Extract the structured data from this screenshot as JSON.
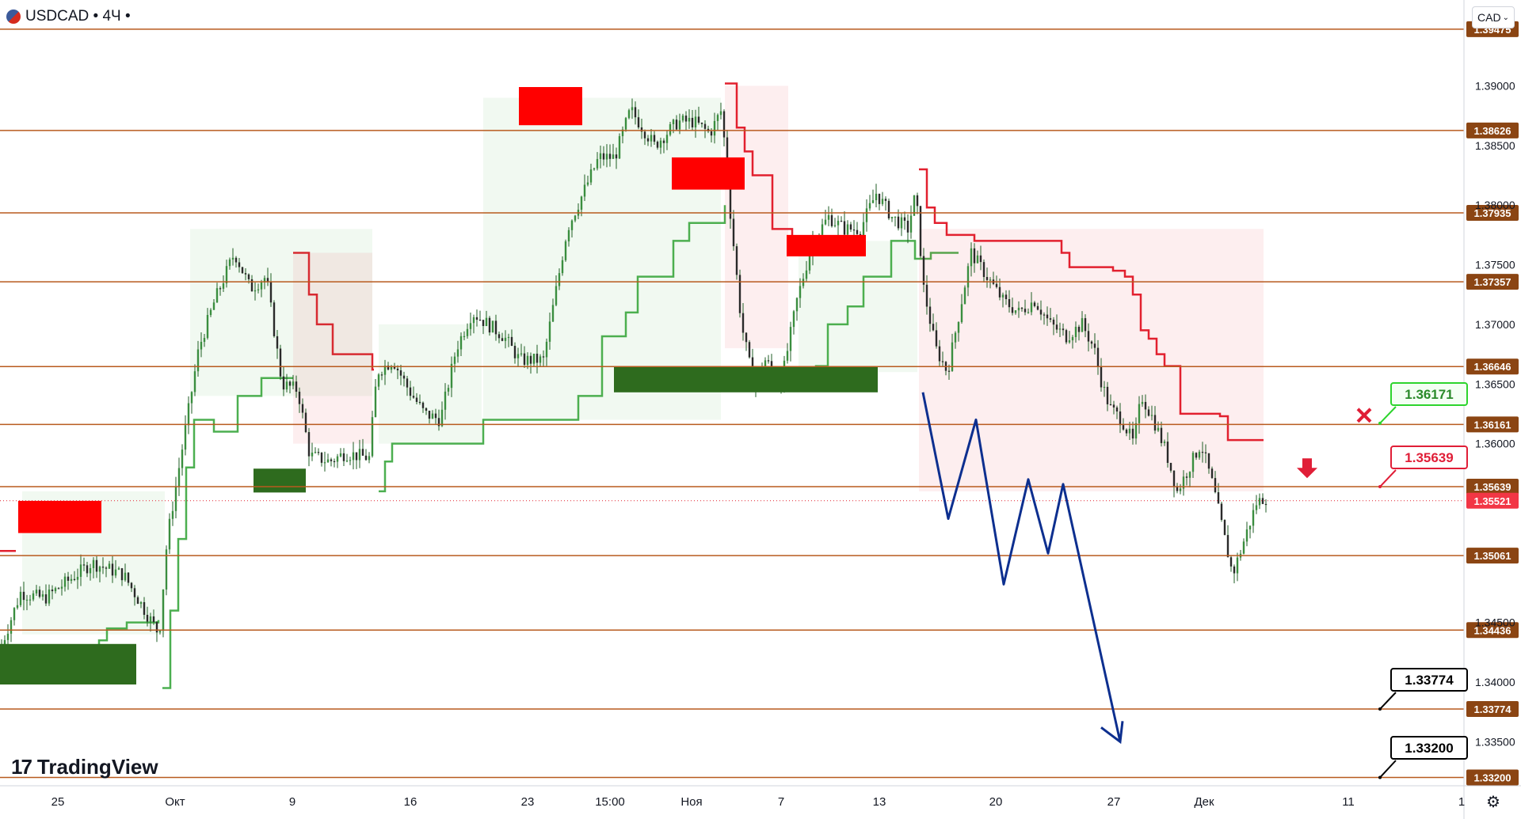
{
  "header": {
    "symbol": "USDCAD",
    "interval": "4Ч",
    "dot": "•"
  },
  "currency_button": {
    "label": "CAD",
    "icon": "chevron-down-icon"
  },
  "logo": {
    "text": "TradingView"
  },
  "colors": {
    "level": "#b85a1e",
    "resistance": "#ff0000",
    "support": "#2e6b1e",
    "projection": "#0d2f8f",
    "target": "#000000",
    "entry": "#e01e37",
    "stop": "#2dd42d",
    "candle": "#2e7d32",
    "redline": "#e2202f",
    "greenline": "#4caf50"
  },
  "chart_data": {
    "type": "candlestick",
    "price_axis": {
      "min": 1.327,
      "max": 1.3955,
      "ticks": [
        "1.39000",
        "1.38500",
        "1.38000",
        "1.37500",
        "1.37000",
        "1.36500",
        "1.36000",
        "1.34500",
        "1.34000",
        "1.33500"
      ]
    },
    "time_axis": {
      "labels": [
        "25",
        "Окт",
        "9",
        "16",
        "23",
        "15:00",
        "Ноя",
        "7",
        "13",
        "20",
        "27",
        "Дек",
        "11",
        "1"
      ]
    },
    "levels": [
      {
        "label": "1.39475",
        "price": 1.39475
      },
      {
        "label": "1.38626",
        "price": 1.38626
      },
      {
        "label": "1.37935",
        "price": 1.37935
      },
      {
        "label": "1.37357",
        "price": 1.37357
      },
      {
        "label": "1.36646",
        "price": 1.36646
      },
      {
        "label": "1.36161",
        "price": 1.36161
      },
      {
        "label": "1.35639",
        "price": 1.35639
      },
      {
        "label": "1.35061",
        "price": 1.35061
      },
      {
        "label": "1.34436",
        "price": 1.34436
      },
      {
        "label": "1.33774",
        "price": 1.33774
      },
      {
        "label": "1.33200",
        "price": 1.332
      }
    ],
    "current_price": {
      "label": "1.35521",
      "price": 1.35521
    },
    "callouts": {
      "stop": {
        "label": "1.36171",
        "price": 1.36171
      },
      "entry": {
        "label": "1.35639",
        "price": 1.35639
      },
      "target1": {
        "label": "1.33774",
        "price": 1.33774
      },
      "target2": {
        "label": "1.33200",
        "price": 1.332
      }
    },
    "zones": [
      {
        "type": "resistance",
        "from": 1.3525,
        "to": 1.3552,
        "x": [
          23,
          128
        ]
      },
      {
        "type": "support",
        "from": 1.3398,
        "to": 1.3432,
        "x": [
          0,
          172
        ]
      },
      {
        "type": "support",
        "from": 1.3559,
        "to": 1.3579,
        "x": [
          320,
          386
        ]
      },
      {
        "type": "resistance",
        "from": 1.3867,
        "to": 1.3899,
        "x": [
          655,
          735
        ]
      },
      {
        "type": "resistance",
        "from": 1.3813,
        "to": 1.384,
        "x": [
          848,
          940
        ]
      },
      {
        "type": "resistance",
        "from": 1.3757,
        "to": 1.3775,
        "x": [
          993,
          1093
        ]
      },
      {
        "type": "support",
        "from": 1.3643,
        "to": 1.3665,
        "x": [
          775,
          1108
        ]
      }
    ],
    "projection": [
      [
        1165,
        1.3643
      ],
      [
        1197,
        1.3537
      ],
      [
        1232,
        1.362
      ],
      [
        1267,
        1.3482
      ],
      [
        1298,
        1.357
      ],
      [
        1323,
        1.3508
      ],
      [
        1342,
        1.3566
      ],
      [
        1414,
        1.335
      ]
    ]
  }
}
